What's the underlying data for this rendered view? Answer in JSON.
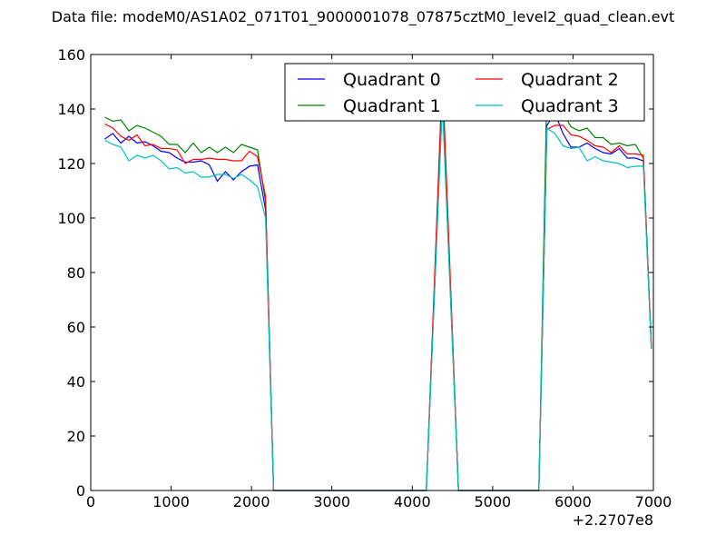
{
  "chart_data": {
    "type": "line",
    "title": "Data file: modeM0/AS1A02_071T01_9000001078_07875cztM0_level2_quad_clean.evt",
    "xlabel": "",
    "ylabel": "",
    "x_offset_label": "+2.2707e8",
    "xlim": [
      0,
      7000
    ],
    "ylim": [
      0,
      160
    ],
    "x_ticks": [
      0,
      1000,
      2000,
      3000,
      4000,
      5000,
      6000,
      7000
    ],
    "y_ticks": [
      0,
      20,
      40,
      60,
      80,
      100,
      120,
      140,
      160
    ],
    "grid": false,
    "legend_position": "top-right",
    "legend_columns": 2,
    "x": [
      175,
      275,
      375,
      475,
      575,
      675,
      775,
      875,
      975,
      1075,
      1175,
      1275,
      1375,
      1475,
      1575,
      1675,
      1775,
      1875,
      1975,
      2075,
      2175,
      2275,
      2375,
      4175,
      4375,
      4575,
      5575,
      5675,
      5775,
      5875,
      5975,
      6075,
      6175,
      6275,
      6375,
      6475,
      6575,
      6675,
      6775,
      6875,
      6975
    ],
    "series": [
      {
        "name": "Quadrant 0",
        "color": "#0000ff",
        "values": [
          129,
          131,
          127.5,
          130,
          127.5,
          128,
          126.5,
          124.5,
          124,
          122,
          120.5,
          120.5,
          121,
          119.5,
          113.5,
          117,
          114,
          117,
          119,
          119.5,
          103,
          0,
          0,
          0,
          148,
          0,
          0,
          134,
          138.5,
          131,
          126,
          126,
          127.5,
          125.5,
          124,
          123.5,
          125.5,
          122,
          122,
          121,
          52
        ]
      },
      {
        "name": "Quadrant 1",
        "color": "#008000",
        "values": [
          137,
          135.5,
          136,
          132,
          134,
          133,
          131.5,
          130,
          127,
          127,
          124,
          127.5,
          124,
          126,
          124,
          126,
          124,
          127,
          126,
          125,
          106,
          0,
          0,
          0,
          144,
          0,
          0,
          147.5,
          141.5,
          138.5,
          133.5,
          132,
          133,
          129.5,
          129.5,
          127,
          127.5,
          126.5,
          127,
          122,
          52
        ]
      },
      {
        "name": "Quadrant 2",
        "color": "#ff0000",
        "values": [
          134.5,
          133,
          130,
          128.5,
          130.5,
          126.5,
          127,
          125.5,
          125.5,
          125,
          120,
          121.5,
          121.5,
          122,
          121.5,
          121.5,
          121,
          121,
          124.5,
          122.5,
          108,
          0,
          0,
          0,
          153,
          0,
          0,
          132.5,
          134,
          134,
          130.5,
          130,
          128.5,
          126.5,
          126,
          124,
          126.5,
          123.5,
          123.5,
          123,
          53
        ]
      },
      {
        "name": "Quadrant 3",
        "color": "#00bfbf",
        "values": [
          128.5,
          127,
          126,
          121,
          123,
          122,
          123,
          121,
          118,
          118.5,
          116.5,
          117,
          115,
          115,
          116,
          116,
          114.5,
          116,
          114,
          111.5,
          100,
          0,
          0,
          0,
          142,
          0,
          0,
          133,
          131,
          126.5,
          125.5,
          126,
          121,
          122.5,
          121,
          120.5,
          120,
          118.5,
          119,
          119,
          52
        ]
      }
    ]
  }
}
